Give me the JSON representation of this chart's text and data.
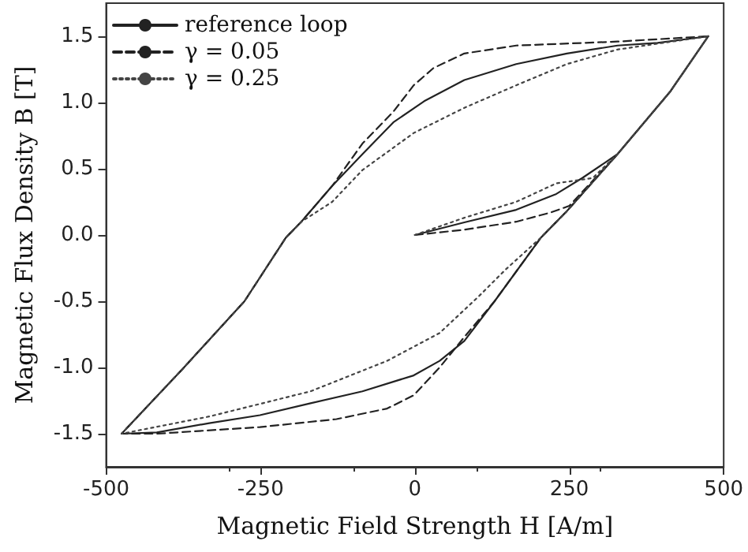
{
  "chart_data": {
    "type": "line",
    "xlabel": "Magnetic Field Strength H [A/m]",
    "ylabel": "Magnetic Flux Density B [T]",
    "xlim": [
      -500,
      500
    ],
    "xticks": [
      -500,
      -250,
      0,
      250,
      500
    ],
    "ylim": [
      -1.75,
      1.75
    ],
    "yticks": [
      {
        "value": -1.5,
        "label": "-1.5"
      },
      {
        "value": -1,
        "label": "-1.0"
      },
      {
        "value": -0.5,
        "label": "-0.5"
      },
      {
        "value": 0,
        "label": "0.0"
      },
      {
        "value": 0.5,
        "label": "0.5"
      },
      {
        "value": 1,
        "label": "1.0"
      },
      {
        "value": 1.5,
        "label": "1.5"
      }
    ],
    "grid": false,
    "legend": "top left",
    "marker": "none",
    "series": [
      {
        "name": "reference loop",
        "color": "#222222",
        "line_style": "solid",
        "x": [
          0,
          80,
          164,
          229,
          271,
          328,
          413,
          475,
          393,
          328,
          246,
          164,
          80,
          15,
          -35,
          -85,
          -134,
          -184,
          -209,
          -276,
          -376,
          -475,
          -418,
          -333,
          -251,
          -169,
          -85,
          -2,
          40,
          80,
          129,
          204,
          246,
          328,
          413,
          475
        ],
        "values": [
          0,
          0.095,
          0.19,
          0.31,
          0.43,
          0.61,
          1.08,
          1.5,
          1.45,
          1.43,
          1.37,
          1.29,
          1.17,
          1.01,
          0.85,
          0.61,
          0.37,
          0.1,
          -0.02,
          -0.5,
          -1.01,
          -1.5,
          -1.49,
          -1.42,
          -1.36,
          -1.27,
          -1.18,
          -1.06,
          -0.95,
          -0.8,
          -0.5,
          -0.02,
          0.18,
          0.61,
          1.08,
          1.5
        ]
      },
      {
        "name": "γ = 0.05",
        "color": "#222222",
        "line_style": "dashed",
        "x": [
          0,
          80,
          164,
          220,
          250,
          328,
          413,
          475,
          328,
          164,
          80,
          30,
          -2,
          -35,
          -85,
          -134,
          -184,
          -209,
          -276,
          -376,
          -475,
          -418,
          -251,
          -127,
          -45,
          -2,
          40,
          80,
          129,
          204,
          246,
          328,
          413,
          475
        ],
        "values": [
          0,
          0.04,
          0.1,
          0.17,
          0.22,
          0.61,
          1.08,
          1.5,
          1.46,
          1.43,
          1.37,
          1.26,
          1.13,
          0.93,
          0.69,
          0.37,
          0.1,
          -0.02,
          -0.5,
          -1.01,
          -1.5,
          -1.5,
          -1.45,
          -1.39,
          -1.31,
          -1.21,
          -1,
          -0.77,
          -0.5,
          -0.02,
          0.18,
          0.61,
          1.08,
          1.5
        ]
      },
      {
        "name": "γ = 0.25",
        "color": "#444444",
        "line_style": "dotted",
        "x": [
          0,
          80,
          164,
          229,
          288,
          328,
          413,
          475,
          328,
          246,
          164,
          80,
          -2,
          -85,
          -134,
          -184,
          -209,
          -276,
          -376,
          -475,
          -333,
          -169,
          -45,
          40,
          104,
          147,
          204,
          246,
          328,
          413,
          475
        ],
        "values": [
          0,
          0.13,
          0.25,
          0.39,
          0.43,
          0.61,
          1.08,
          1.5,
          1.4,
          1.29,
          1.13,
          0.96,
          0.77,
          0.49,
          0.25,
          0.1,
          -0.02,
          -0.5,
          -1.01,
          -1.5,
          -1.37,
          -1.18,
          -0.95,
          -0.74,
          -0.46,
          -0.26,
          -0.02,
          0.18,
          0.61,
          1.08,
          1.5
        ]
      }
    ]
  }
}
